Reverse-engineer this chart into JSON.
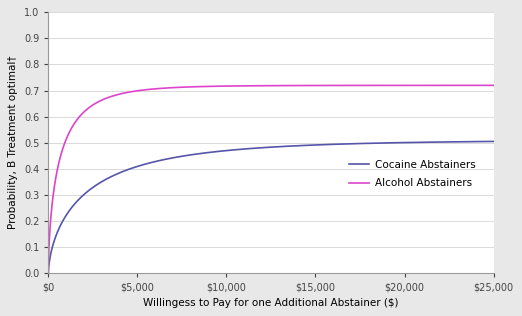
{
  "title": "",
  "xlabel": "Willingess to Pay for one Additional Abstainer ($)",
  "ylabel": "Probability, B Treatment optimal†",
  "xlim": [
    0,
    25000
  ],
  "ylim": [
    0,
    1.0
  ],
  "xticks": [
    0,
    5000,
    10000,
    15000,
    20000,
    25000
  ],
  "xtick_labels": [
    "$0",
    "$5,000",
    "$10,000",
    "$15,000",
    "$20,000",
    "$25,000"
  ],
  "yticks": [
    0.0,
    0.1,
    0.2,
    0.3,
    0.4,
    0.5,
    0.6,
    0.7,
    0.8,
    0.9,
    1.0
  ],
  "cocaine_color": "#5555aa",
  "alcohol_color": "#dd44cc",
  "cocaine_label": "Cocaine Abstainers",
  "alcohol_label": "Alcohol Abstainers",
  "cocaine_asymptote": 0.51,
  "alcohol_asymptote": 0.72,
  "cocaine_k": 0.00042,
  "alcohol_k": 0.0014,
  "fig_facecolor": "#e8e8e8",
  "ax_facecolor": "#ffffff"
}
